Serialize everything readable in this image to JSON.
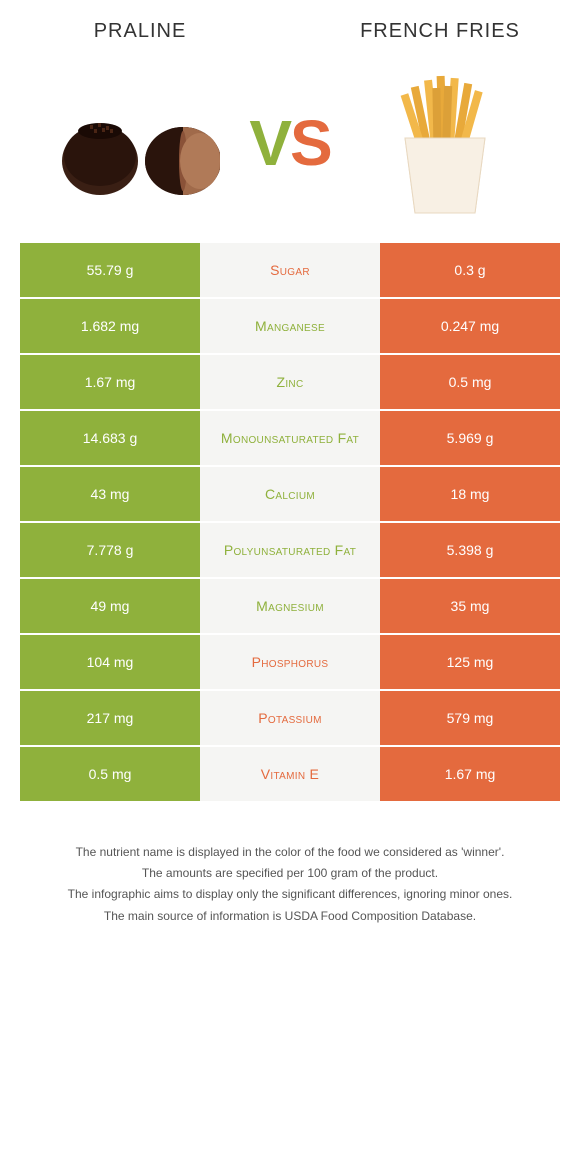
{
  "header": {
    "left": "Praline",
    "right": "French fries"
  },
  "vs": {
    "v": "V",
    "s": "S"
  },
  "colors": {
    "green": "#8fb13c",
    "orange": "#e46a3e",
    "mid_bg": "#f5f5f3",
    "text_white": "#ffffff"
  },
  "rows": [
    {
      "left": "55.79 g",
      "nutrient": "Sugar",
      "right": "0.3 g",
      "winner": "orange"
    },
    {
      "left": "1.682 mg",
      "nutrient": "Manganese",
      "right": "0.247 mg",
      "winner": "green"
    },
    {
      "left": "1.67 mg",
      "nutrient": "Zinc",
      "right": "0.5 mg",
      "winner": "green"
    },
    {
      "left": "14.683 g",
      "nutrient": "Monounsaturated fat",
      "right": "5.969 g",
      "winner": "green"
    },
    {
      "left": "43 mg",
      "nutrient": "Calcium",
      "right": "18 mg",
      "winner": "green"
    },
    {
      "left": "7.778 g",
      "nutrient": "Polyunsaturated fat",
      "right": "5.398 g",
      "winner": "green"
    },
    {
      "left": "49 mg",
      "nutrient": "Magnesium",
      "right": "35 mg",
      "winner": "green"
    },
    {
      "left": "104 mg",
      "nutrient": "Phosphorus",
      "right": "125 mg",
      "winner": "orange"
    },
    {
      "left": "217 mg",
      "nutrient": "Potassium",
      "right": "579 mg",
      "winner": "orange"
    },
    {
      "left": "0.5 mg",
      "nutrient": "Vitamin E",
      "right": "1.67 mg",
      "winner": "orange"
    }
  ],
  "footnotes": [
    "The nutrient name is displayed in the color of the food we considered as 'winner'.",
    "The amounts are specified per 100 gram of the product.",
    "The infographic aims to display only the significant differences, ignoring minor ones.",
    "The main source of information is USDA Food Composition Database."
  ]
}
